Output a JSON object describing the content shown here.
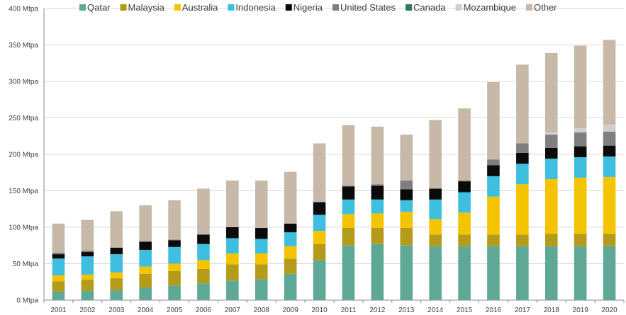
{
  "chart_data": {
    "type": "bar",
    "stacked": true,
    "title": "",
    "xlabel": "",
    "ylabel": "",
    "y_unit_suffix": " Mtpa",
    "ylim": [
      0,
      400
    ],
    "yticks": [
      0,
      50,
      100,
      150,
      200,
      250,
      300,
      350,
      400
    ],
    "grid": true,
    "legend_position": "top",
    "categories": [
      "2001",
      "2002",
      "2003",
      "2004",
      "2005",
      "2006",
      "2007",
      "2008",
      "2009",
      "2010",
      "2011",
      "2012",
      "2013",
      "2014",
      "2015",
      "2016",
      "2017",
      "2018",
      "2019",
      "2020"
    ],
    "series": [
      {
        "name": "Qatar",
        "color": "#5fa896",
        "values": [
          12,
          13,
          14,
          17,
          20,
          23,
          27,
          29,
          36,
          55,
          75,
          77,
          75,
          74,
          74,
          74,
          74,
          74,
          74,
          74
        ]
      },
      {
        "name": "Malaysia",
        "color": "#b59b1a",
        "values": [
          14,
          15,
          16,
          19,
          20,
          20,
          22,
          20,
          21,
          22,
          24,
          22,
          24,
          16,
          16,
          16,
          16,
          17,
          17,
          17
        ]
      },
      {
        "name": "Australia",
        "color": "#f5c400",
        "values": [
          8,
          7,
          8,
          10,
          10,
          12,
          15,
          15,
          17,
          18,
          19,
          20,
          22,
          21,
          30,
          52,
          69,
          75,
          77,
          78
        ]
      },
      {
        "name": "Indonesia",
        "color": "#3ebfdf",
        "values": [
          23,
          25,
          25,
          23,
          23,
          22,
          21,
          20,
          19,
          22,
          20,
          19,
          16,
          27,
          28,
          28,
          28,
          28,
          28,
          28
        ]
      },
      {
        "name": "Nigeria",
        "color": "#0a0a0a",
        "values": [
          6,
          6,
          9,
          11,
          9,
          13,
          15,
          15,
          12,
          17,
          18,
          19,
          15,
          15,
          15,
          15,
          15,
          15,
          15,
          15
        ]
      },
      {
        "name": "United States",
        "color": "#7f7f7f",
        "values": [
          2,
          2,
          0,
          1,
          1,
          0,
          0,
          0,
          0,
          1,
          1,
          2,
          12,
          0,
          1,
          8,
          13,
          18,
          19,
          19
        ]
      },
      {
        "name": "Canada",
        "color": "#2e7a55",
        "values": [
          0,
          0,
          0,
          0,
          0,
          0,
          0,
          0,
          0,
          0,
          0,
          0,
          0,
          0,
          0,
          0,
          0,
          0,
          0,
          0
        ]
      },
      {
        "name": "Mozambique",
        "color": "#cfcfcf",
        "values": [
          0,
          0,
          0,
          0,
          0,
          0,
          0,
          0,
          0,
          0,
          0,
          0,
          0,
          0,
          0,
          0,
          0,
          3,
          6,
          10
        ]
      },
      {
        "name": "Other",
        "color": "#c7b8a8",
        "values": [
          40,
          42,
          50,
          49,
          54,
          63,
          64,
          65,
          71,
          80,
          83,
          79,
          63,
          94,
          99,
          106,
          108,
          109,
          113,
          116
        ]
      }
    ]
  }
}
